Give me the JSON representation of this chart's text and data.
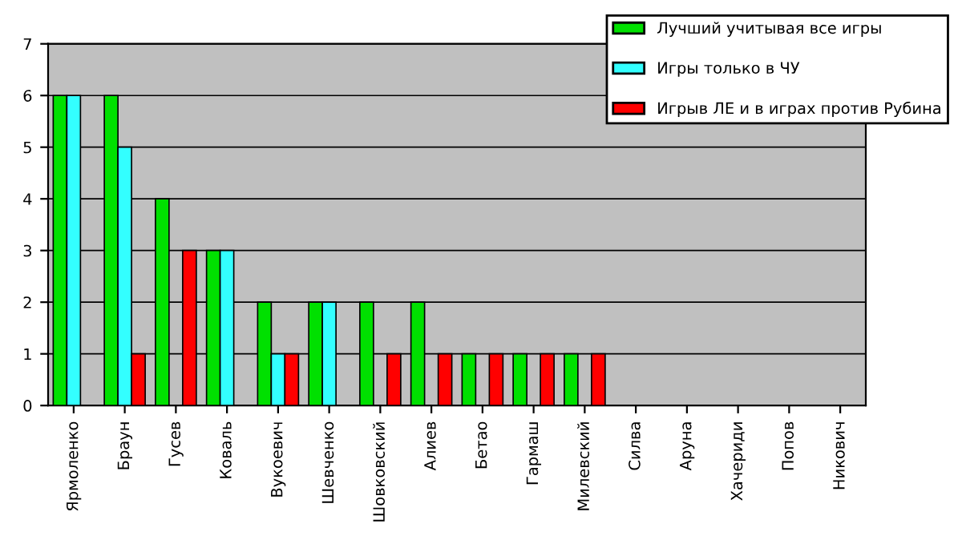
{
  "chart_data": {
    "type": "bar",
    "categories": [
      "Ярмоленко",
      "Браун",
      "Гусев",
      "Коваль",
      "Вукоевич",
      "Шевченко",
      "Шовковский",
      "Алиев",
      "Бетао",
      "Гармаш",
      "Милевский",
      "Силва",
      "Аруна",
      "Хачериди",
      "Попов",
      "Никович"
    ],
    "series": [
      {
        "name": "Лучший учитывая все игры",
        "color": "#00e000",
        "values": [
          6,
          6,
          4,
          3,
          2,
          2,
          2,
          2,
          1,
          1,
          1,
          0,
          0,
          0,
          0,
          0
        ]
      },
      {
        "name": "Игры только в ЧУ",
        "color": "#33ffff",
        "values": [
          6,
          5,
          0,
          3,
          1,
          2,
          0,
          0,
          0,
          0,
          0,
          0,
          0,
          0,
          0,
          0
        ]
      },
      {
        "name": "Игрыв ЛЕ и в играх против Рубина",
        "color": "#ff0000",
        "values": [
          0,
          1,
          3,
          0,
          1,
          0,
          1,
          1,
          1,
          1,
          1,
          0,
          0,
          0,
          0,
          0
        ]
      }
    ],
    "ylim": [
      0,
      7
    ],
    "yticks": [
      0,
      1,
      2,
      3,
      4,
      5,
      6,
      7
    ],
    "grid": "y",
    "legend": "top right"
  }
}
